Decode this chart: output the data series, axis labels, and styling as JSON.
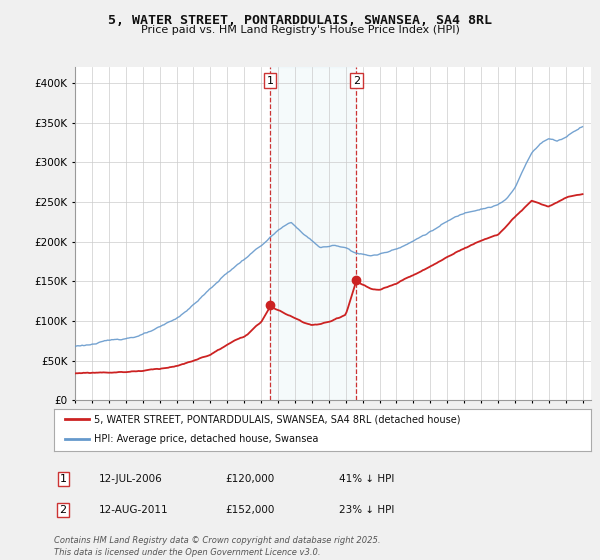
{
  "title": "5, WATER STREET, PONTARDDULAIS, SWANSEA, SA4 8RL",
  "subtitle": "Price paid vs. HM Land Registry's House Price Index (HPI)",
  "background_color": "#f0f0f0",
  "plot_bg_color": "#ffffff",
  "hpi_color": "#6699cc",
  "price_color": "#cc2222",
  "legend_line1": "5, WATER STREET, PONTARDDULAIS, SWANSEA, SA4 8RL (detached house)",
  "legend_line2": "HPI: Average price, detached house, Swansea",
  "footer": "Contains HM Land Registry data © Crown copyright and database right 2025.\nThis data is licensed under the Open Government Licence v3.0.",
  "ylim": [
    0,
    420000
  ],
  "yticks": [
    0,
    50000,
    100000,
    150000,
    200000,
    250000,
    300000,
    350000,
    400000
  ],
  "marker1_year": 2006.54,
  "marker2_year": 2011.62,
  "marker1_price": 120000,
  "marker2_price": 152000,
  "hpi_keypoints_x": [
    1995.0,
    1996.0,
    1997.0,
    1998.0,
    1999.0,
    2000.0,
    2001.0,
    2002.0,
    2003.0,
    2004.0,
    2005.0,
    2006.0,
    2007.0,
    2007.8,
    2008.5,
    2009.5,
    2010.5,
    2011.0,
    2011.5,
    2012.0,
    2012.5,
    2013.0,
    2013.5,
    2014.0,
    2015.0,
    2016.0,
    2017.0,
    2018.0,
    2019.0,
    2020.0,
    2020.5,
    2021.0,
    2021.5,
    2022.0,
    2022.5,
    2023.0,
    2023.5,
    2024.0,
    2024.5,
    2025.0
  ],
  "hpi_keypoints_y": [
    68000,
    71000,
    74000,
    78000,
    83000,
    90000,
    100000,
    118000,
    138000,
    158000,
    175000,
    192000,
    210000,
    220000,
    205000,
    188000,
    190000,
    188000,
    183000,
    180000,
    178000,
    180000,
    183000,
    188000,
    198000,
    210000,
    222000,
    232000,
    240000,
    245000,
    252000,
    265000,
    288000,
    310000,
    322000,
    328000,
    325000,
    330000,
    338000,
    345000
  ],
  "price_keypoints_x": [
    1995.0,
    1996.0,
    1997.0,
    1998.0,
    1999.0,
    2000.0,
    2001.0,
    2002.0,
    2003.0,
    2004.0,
    2005.0,
    2006.0,
    2006.54,
    2007.0,
    2007.5,
    2008.0,
    2008.5,
    2009.0,
    2009.5,
    2010.0,
    2010.5,
    2011.0,
    2011.62,
    2012.0,
    2012.5,
    2013.0,
    2014.0,
    2015.0,
    2016.0,
    2017.0,
    2018.0,
    2019.0,
    2020.0,
    2021.0,
    2022.0,
    2022.5,
    2023.0,
    2023.5,
    2024.0,
    2024.5,
    2025.0
  ],
  "price_keypoints_y": [
    34000,
    35000,
    36000,
    37000,
    39000,
    42000,
    46000,
    52000,
    60000,
    72000,
    82000,
    100000,
    120000,
    115000,
    110000,
    105000,
    100000,
    97000,
    98000,
    100000,
    105000,
    110000,
    152000,
    148000,
    142000,
    140000,
    148000,
    158000,
    168000,
    180000,
    192000,
    202000,
    210000,
    232000,
    252000,
    248000,
    245000,
    250000,
    255000,
    258000,
    260000
  ]
}
